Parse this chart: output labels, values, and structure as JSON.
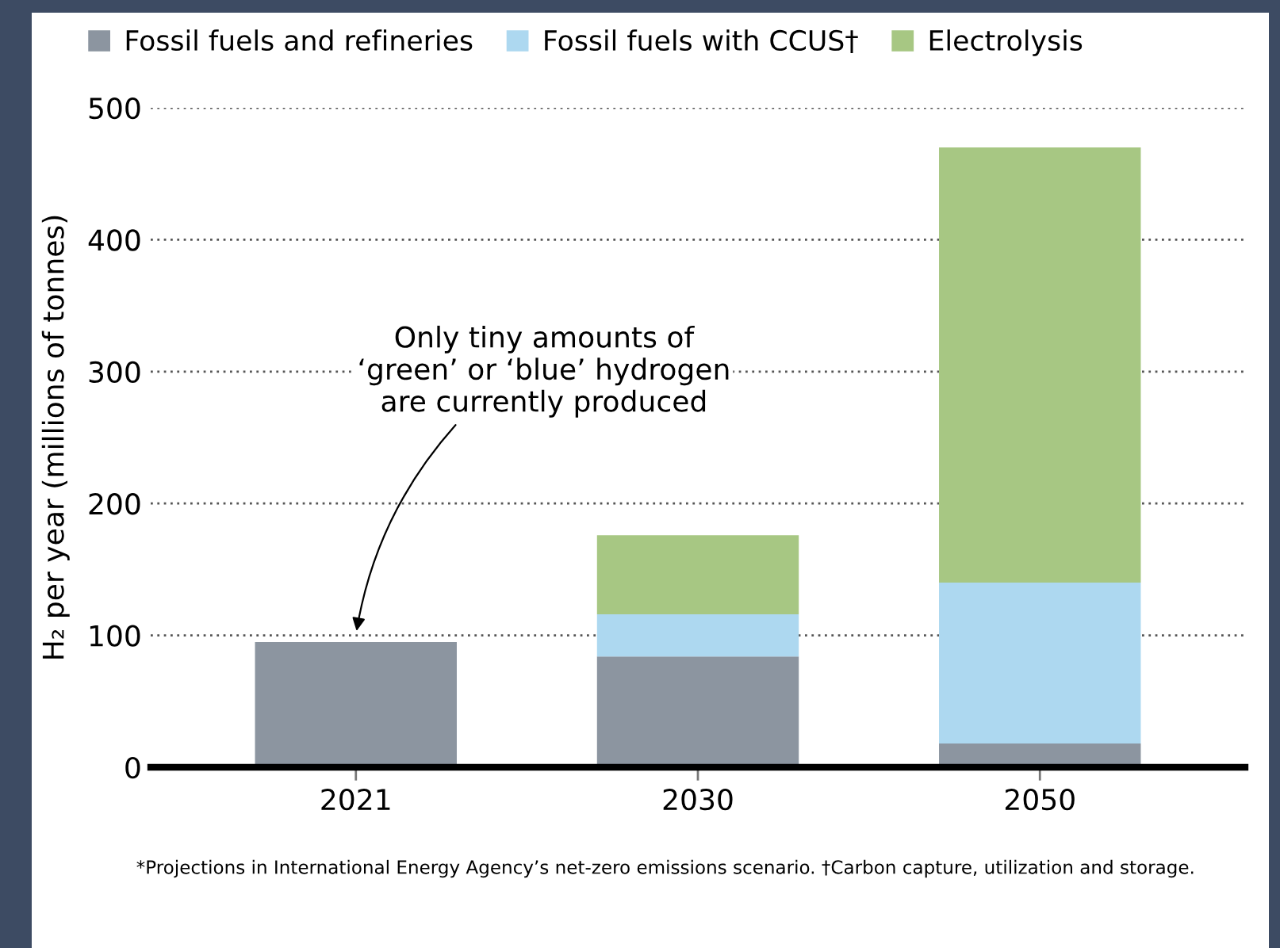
{
  "chart_data": {
    "type": "bar",
    "stacked": true,
    "categories": [
      "2021",
      "2030",
      "2050"
    ],
    "series": [
      {
        "name": "Fossil fuels and refineries",
        "color": "#8c95a0",
        "values": [
          95,
          84,
          18
        ]
      },
      {
        "name": "Fossil fuels with CCUS†",
        "color": "#add8f0",
        "values": [
          0,
          32,
          122
        ]
      },
      {
        "name": "Electrolysis",
        "color": "#a7c783",
        "values": [
          0,
          60,
          330
        ]
      }
    ],
    "ylabel": "H₂ per year (millions of tonnes)",
    "ylim": [
      0,
      500
    ],
    "yticks": [
      0,
      100,
      200,
      300,
      400,
      500
    ],
    "grid": "y",
    "legend": "top",
    "annotations": [
      "Only tiny amounts of\n‘green’ or ‘blue’ hydrogen\nare currently produced",
      "*Projections in International Energy Agency’s net-zero emissions scenario. †Carbon capture, utilization and storage."
    ]
  }
}
